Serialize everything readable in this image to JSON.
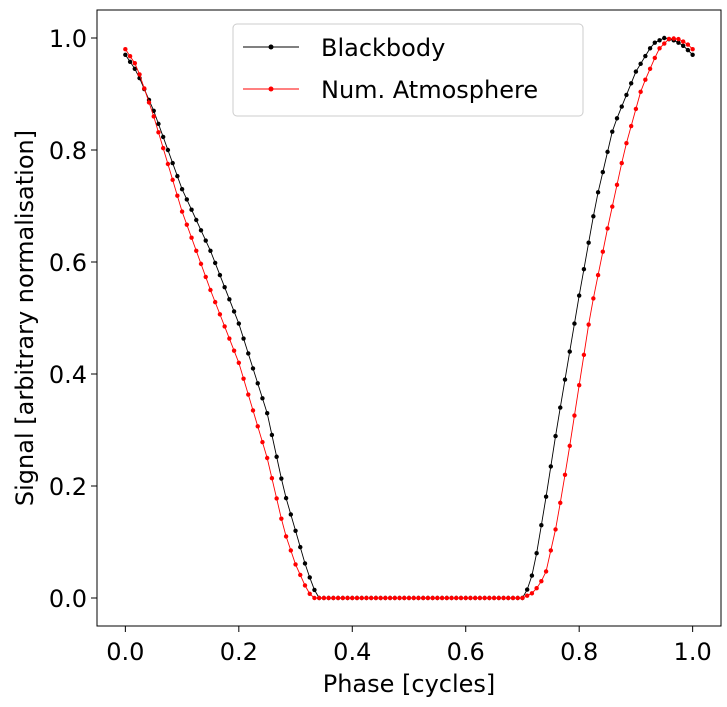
{
  "chart_data": {
    "type": "line",
    "title": "",
    "xlabel": "Phase [cycles]",
    "ylabel": "Signal [arbitrary normalisation]",
    "xlim": [
      -0.05,
      1.05
    ],
    "ylim": [
      -0.05,
      1.05
    ],
    "xticks": [
      0.0,
      0.2,
      0.4,
      0.6,
      0.8,
      1.0
    ],
    "yticks": [
      0.0,
      0.2,
      0.4,
      0.6,
      0.8,
      1.0
    ],
    "xtick_labels": [
      "0.0",
      "0.2",
      "0.4",
      "0.6",
      "0.8",
      "1.0"
    ],
    "ytick_labels": [
      "0.0",
      "0.2",
      "0.4",
      "0.6",
      "0.8",
      "1.0"
    ],
    "grid": false,
    "legend": {
      "placement": "top-center"
    },
    "series": [
      {
        "name": "Blackbody",
        "color": "#000000",
        "marker": "circle",
        "points": [
          [
            0.0,
            0.97
          ],
          [
            0.02,
            0.94
          ],
          [
            0.05,
            0.87
          ],
          [
            0.1,
            0.73
          ],
          [
            0.15,
            0.62
          ],
          [
            0.2,
            0.49
          ],
          [
            0.25,
            0.33
          ],
          [
            0.28,
            0.19
          ],
          [
            0.3,
            0.12
          ],
          [
            0.32,
            0.05
          ],
          [
            0.335,
            0.01
          ],
          [
            0.34,
            0.0
          ],
          [
            0.4,
            0.0
          ],
          [
            0.5,
            0.0
          ],
          [
            0.6,
            0.0
          ],
          [
            0.7,
            0.0
          ],
          [
            0.705,
            0.005
          ],
          [
            0.72,
            0.05
          ],
          [
            0.74,
            0.17
          ],
          [
            0.76,
            0.3
          ],
          [
            0.78,
            0.42
          ],
          [
            0.8,
            0.54
          ],
          [
            0.83,
            0.71
          ],
          [
            0.86,
            0.84
          ],
          [
            0.9,
            0.94
          ],
          [
            0.93,
            0.99
          ],
          [
            0.95,
            1.0
          ],
          [
            0.97,
            0.995
          ],
          [
            0.985,
            0.985
          ],
          [
            1.0,
            0.97
          ]
        ]
      },
      {
        "name": "Num. Atmosphere",
        "color": "#ff0000",
        "marker": "circle",
        "points": [
          [
            0.0,
            0.98
          ],
          [
            0.02,
            0.95
          ],
          [
            0.05,
            0.86
          ],
          [
            0.1,
            0.69
          ],
          [
            0.15,
            0.55
          ],
          [
            0.2,
            0.42
          ],
          [
            0.25,
            0.25
          ],
          [
            0.28,
            0.12
          ],
          [
            0.3,
            0.06
          ],
          [
            0.32,
            0.015
          ],
          [
            0.33,
            0.0
          ],
          [
            0.4,
            0.0
          ],
          [
            0.5,
            0.0
          ],
          [
            0.6,
            0.0
          ],
          [
            0.7,
            0.0
          ],
          [
            0.72,
            0.01
          ],
          [
            0.74,
            0.04
          ],
          [
            0.76,
            0.13
          ],
          [
            0.78,
            0.25
          ],
          [
            0.8,
            0.38
          ],
          [
            0.82,
            0.51
          ],
          [
            0.85,
            0.66
          ],
          [
            0.88,
            0.8
          ],
          [
            0.91,
            0.91
          ],
          [
            0.94,
            0.98
          ],
          [
            0.96,
            1.0
          ],
          [
            0.975,
            0.998
          ],
          [
            0.99,
            0.99
          ],
          [
            1.0,
            0.98
          ]
        ]
      }
    ]
  }
}
